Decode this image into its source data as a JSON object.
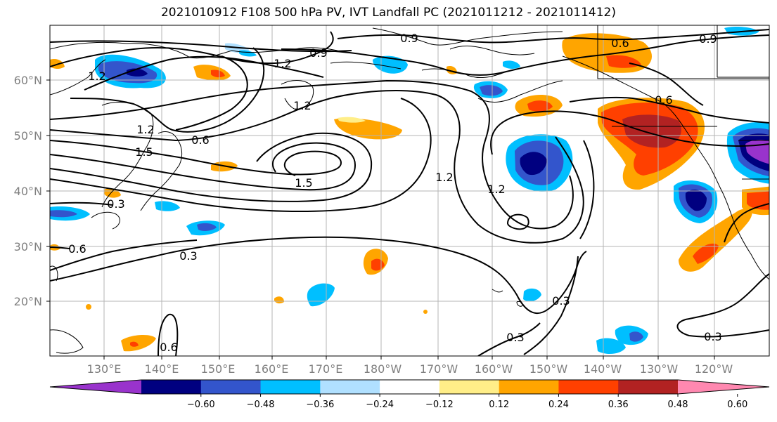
{
  "title": "2021010912 F108 500 hPa PV, IVT Landfall PC (2021011212 - 2021011412)",
  "lat_labels": [
    "60°N",
    "50°N",
    "40°N",
    "30°N",
    "20°N"
  ],
  "lon_labels": [
    "130°E",
    "140°E",
    "150°E",
    "160°E",
    "170°E",
    "180°W",
    "170°W",
    "160°W",
    "150°W",
    "140°W",
    "130°W",
    "120°W"
  ],
  "contour_labels": [
    "0.9",
    "0.9",
    "0.9",
    "0.6",
    "1.2",
    "1.2",
    "1.2",
    "0.6",
    "1.2",
    "1.5",
    "0.6",
    "1.2",
    "1.5",
    "0.3",
    "0.6",
    "0.3",
    "0.3",
    "0.3",
    "0.3",
    "0.6",
    "1.2"
  ],
  "colorbar": {
    "ticks": [
      "−0.60",
      "−0.48",
      "−0.36",
      "−0.24",
      "−0.12",
      "0.12",
      "0.24",
      "0.36",
      "0.48",
      "0.60"
    ],
    "colors": [
      "#9933cc",
      "#000080",
      "#3355cc",
      "#00bfff",
      "#b0e0ff",
      "#ffffff",
      "#ffee88",
      "#ffa500",
      "#ff4000",
      "#b22222",
      "#ff88b0"
    ]
  },
  "chart_data": {
    "type": "map",
    "title": "2021010912 F108 500 hPa PV, IVT Landfall PC (2021011212 - 2021011412)",
    "projection": "PlateCarree",
    "lon_range": [
      "120°E",
      "115°W"
    ],
    "lat_range": [
      "10°N",
      "70°N"
    ],
    "grid": true,
    "contour_levels": [
      0.3,
      0.6,
      0.9,
      1.2,
      1.5
    ],
    "shaded_levels": [
      -0.6,
      -0.48,
      -0.36,
      -0.24,
      -0.12,
      0.12,
      0.24,
      0.36,
      0.48,
      0.6
    ],
    "colorbar_extend": "both"
  }
}
